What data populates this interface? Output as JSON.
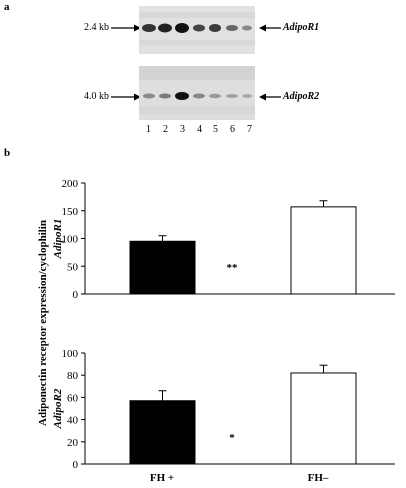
{
  "panel_a": {
    "label": "a",
    "blot1": {
      "size_label": "2.4 kb",
      "gene": "AdipoR1"
    },
    "blot2": {
      "size_label": "4.0 kb",
      "gene": "AdipoR2"
    },
    "lanes": [
      "1",
      "2",
      "3",
      "4",
      "5",
      "6",
      "7"
    ]
  },
  "panel_b": {
    "label": "b"
  },
  "chart_data": [
    {
      "type": "bar",
      "gene": "AdipoR1",
      "ylabel": "Adiponectin receptor expression/cyclophilin",
      "categories": [
        "FH +",
        "FH–"
      ],
      "values": [
        95,
        157
      ],
      "errors": [
        10,
        11
      ],
      "fill_colors": [
        "#000000",
        "#ffffff"
      ],
      "ylim": [
        0,
        200
      ],
      "yticks": [
        0,
        50,
        100,
        150,
        200
      ],
      "significance": "**"
    },
    {
      "type": "bar",
      "gene": "AdipoR2",
      "categories": [
        "FH +",
        "FH–"
      ],
      "values": [
        57,
        82
      ],
      "errors": [
        9,
        7
      ],
      "fill_colors": [
        "#000000",
        "#ffffff"
      ],
      "ylim": [
        0,
        100
      ],
      "yticks": [
        0,
        20,
        40,
        60,
        80,
        100
      ],
      "significance": "*"
    }
  ]
}
